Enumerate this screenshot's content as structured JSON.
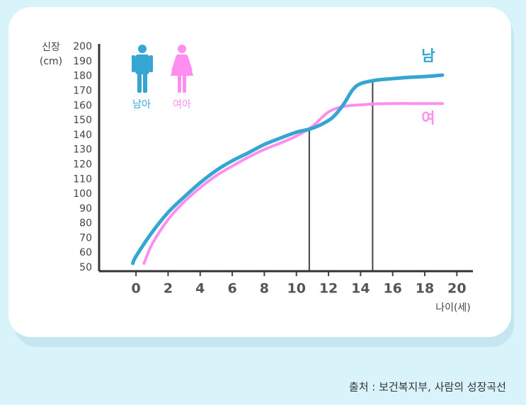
{
  "chart_data": {
    "type": "line",
    "y_label_lines": [
      "신장",
      "(cm)"
    ],
    "x_label": "나이(세)",
    "legend": [
      {
        "label": "남아",
        "color": "#35a6d2"
      },
      {
        "label": "여아",
        "color": "#ff8ef0"
      }
    ],
    "xlim": [
      -2.3,
      21
    ],
    "ylim": [
      47.6,
      202
    ],
    "xticks": [
      0,
      2,
      4,
      6,
      8,
      10,
      12,
      14,
      16,
      18,
      20
    ],
    "yticks": [
      50,
      60,
      70,
      80,
      90,
      100,
      110,
      120,
      130,
      140,
      150,
      160,
      170,
      180,
      190,
      200
    ],
    "series": [
      {
        "name": "남",
        "color": "#35a6d2",
        "x": [
          -0.2,
          0,
          1,
          2,
          3,
          4,
          5,
          6,
          7,
          8,
          9,
          10,
          11,
          12,
          12.5,
          13,
          13.5,
          14,
          15,
          16,
          17,
          18,
          19.1
        ],
        "values": [
          52.9,
          57.7,
          74,
          87.5,
          98,
          107.7,
          116,
          122.6,
          128,
          133.7,
          138,
          142,
          144.7,
          150,
          154.8,
          162,
          170.7,
          175,
          177.4,
          178.4,
          179.3,
          179.8,
          180.8
        ]
      },
      {
        "name": "여",
        "color": "#ff8ef0",
        "x": [
          0.5,
          1,
          2,
          3,
          4,
          5,
          6,
          7,
          8,
          9,
          10,
          11,
          12,
          13,
          14,
          15,
          16,
          17,
          18,
          19.1
        ],
        "values": [
          52.9,
          65.9,
          82.7,
          94.7,
          104.3,
          112.5,
          119,
          125,
          130.3,
          134.6,
          139.4,
          146,
          155.8,
          159.6,
          160.6,
          161.3,
          161.5,
          161.5,
          161.5,
          161.5
        ]
      }
    ],
    "markers": [
      {
        "x": 10.8,
        "y": 144.7
      },
      {
        "x": 14.75,
        "y": 177.4
      }
    ],
    "source": "출처 : 보건복지부, 사람의 성장곡선"
  }
}
